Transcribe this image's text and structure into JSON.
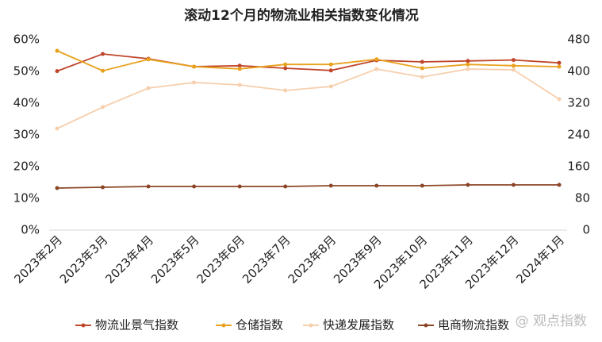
{
  "chart_data": {
    "type": "line",
    "title": "滚动12个月的物流业相关指数变化情况",
    "categories": [
      "2023年2月",
      "2023年3月",
      "2023年4月",
      "2023年5月",
      "2023年6月",
      "2023年7月",
      "2023年8月",
      "2023年9月",
      "2023年10月",
      "2023年11月",
      "2023年12月",
      "2024年1月"
    ],
    "series": [
      {
        "name": "物流业景气指数",
        "color": "#c0462b",
        "values": [
          50.1,
          55.5,
          54.0,
          51.5,
          51.8,
          51.0,
          50.3,
          53.5,
          53.0,
          53.3,
          53.6,
          52.7
        ]
      },
      {
        "name": "仓储指数",
        "color": "#e8a11c",
        "values": [
          56.5,
          50.2,
          53.8,
          51.5,
          50.8,
          52.2,
          52.2,
          53.8,
          51.0,
          52.2,
          51.8,
          51.5
        ]
      },
      {
        "name": "快递发展指数",
        "color": "#f6cfad",
        "axis": "y2",
        "values": [
          256,
          310,
          358,
          372,
          366,
          352,
          362,
          406,
          386,
          406,
          404,
          330
        ]
      },
      {
        "name": "电商物流指数",
        "color": "#8b4626",
        "axis": "y2",
        "values": [
          106,
          108,
          110,
          110,
          110,
          110,
          112,
          112,
          112,
          114,
          114,
          114
        ]
      }
    ],
    "ylim": [
      0,
      60
    ],
    "yticks": [
      {
        "value": 0,
        "label": "0%"
      },
      {
        "value": 10,
        "label": "10%"
      },
      {
        "value": 20,
        "label": "20%"
      },
      {
        "value": 30,
        "label": "30%"
      },
      {
        "value": 40,
        "label": "40%"
      },
      {
        "value": 50,
        "label": "50%"
      },
      {
        "value": 60,
        "label": "60%"
      }
    ],
    "y2lim": [
      0,
      480
    ],
    "y2ticks": [
      0,
      80,
      160,
      240,
      320,
      400,
      480
    ],
    "legend": "bottom",
    "watermark": "@ 观点指数"
  }
}
